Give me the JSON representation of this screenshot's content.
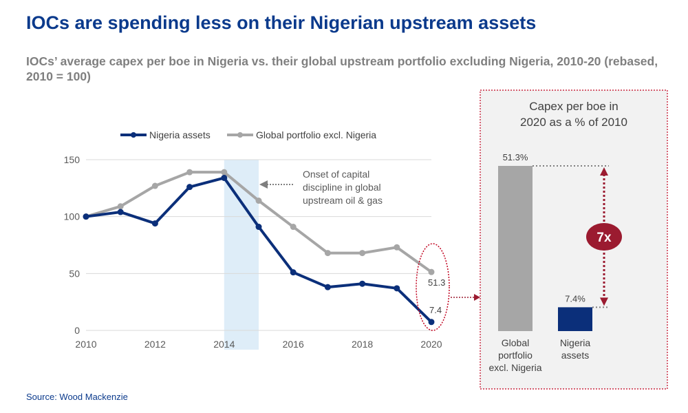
{
  "title": "IOCs are spending less on their Nigerian upstream assets",
  "subtitle": "IOCs’ average capex per boe in Nigeria vs. their global upstream portfolio excluding Nigeria, 2010-20 (rebased, 2010 = 100)",
  "source": "Source: Wood Mackenzie",
  "chart_data": [
    {
      "type": "line",
      "x": [
        2010,
        2011,
        2012,
        2013,
        2014,
        2015,
        2016,
        2017,
        2018,
        2019,
        2020
      ],
      "series": [
        {
          "name": "Nigeria assets",
          "color": "#0b2f7a",
          "values": [
            100,
            104,
            94,
            126,
            134,
            91,
            51,
            38,
            41,
            37,
            7.4
          ]
        },
        {
          "name": "Global portfolio excl. Nigeria",
          "color": "#a6a6a6",
          "values": [
            100,
            109,
            127,
            139,
            139,
            114,
            91,
            68,
            68,
            73,
            51.3
          ]
        }
      ],
      "xticks": [
        "2010",
        "2012",
        "2014",
        "2016",
        "2018",
        "2020"
      ],
      "yticks": [
        "0",
        "50",
        "100",
        "150"
      ],
      "ylim": [
        0,
        150
      ],
      "xlim": [
        2010,
        2020
      ],
      "grid": true,
      "legend": "top",
      "highlight_band": [
        2014,
        2015
      ],
      "annotation": "Onset of capital discipline in global upstream oil & gas",
      "end_labels": [
        "51.3",
        "7.4"
      ]
    },
    {
      "type": "bar",
      "title": "Capex per boe in 2020 as a % of 2010",
      "categories": [
        "Global portfolio excl. Nigeria",
        "Nigeria assets"
      ],
      "values": [
        51.3,
        7.4
      ],
      "value_labels": [
        "51.3%",
        "7.4%"
      ],
      "colors": [
        "#a6a6a6",
        "#0b2f7a"
      ],
      "multiplier_label": "7x",
      "accent": "#9b1b30"
    }
  ]
}
